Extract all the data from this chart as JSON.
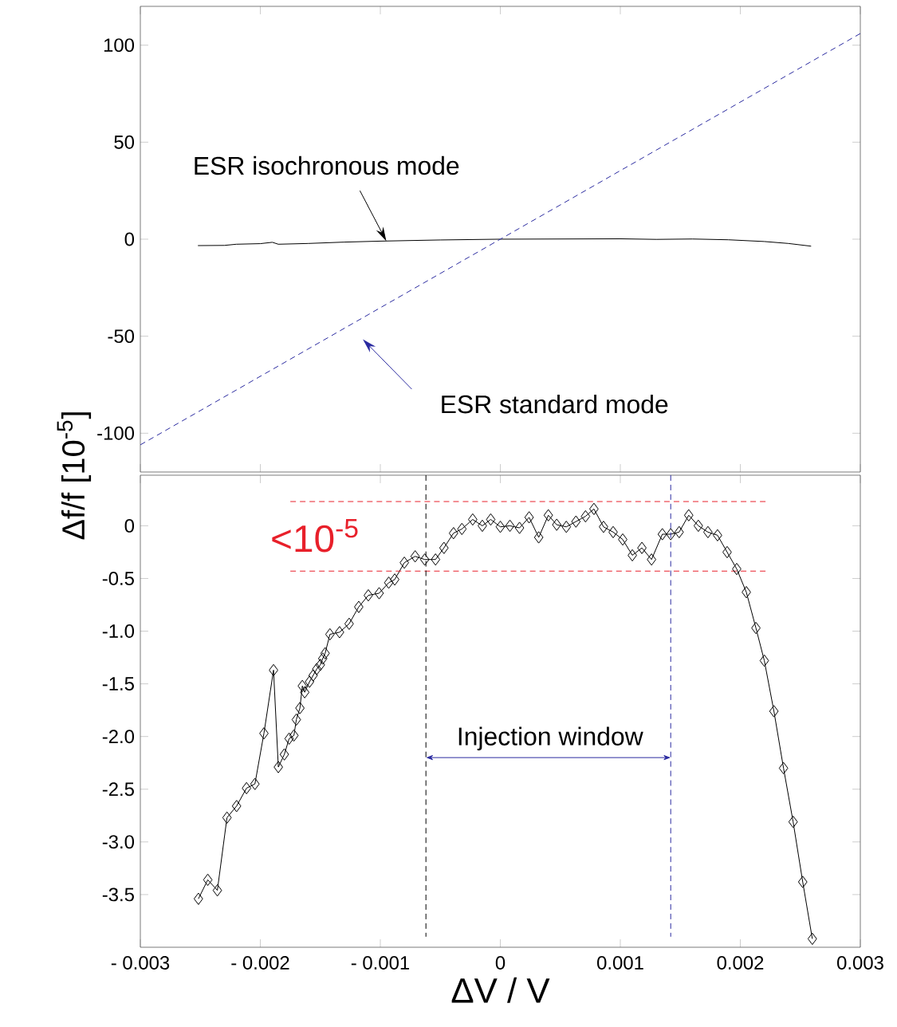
{
  "chart_data": [
    {
      "type": "line",
      "xlim": [
        -0.003,
        0.003
      ],
      "ylim": [
        -120,
        120
      ],
      "tick_labels": "y",
      "xticks": [
        {
          "value": -0.003,
          "label": null
        },
        {
          "value": -0.002,
          "label": null
        },
        {
          "value": -0.001,
          "label": null
        },
        {
          "value": 0,
          "label": null
        },
        {
          "value": 0.001,
          "label": null
        },
        {
          "value": 0.002,
          "label": null
        },
        {
          "value": 0.003,
          "label": null
        }
      ],
      "yticks": [
        -100,
        -50,
        0,
        50,
        100
      ],
      "series": [
        {
          "color": "#000000",
          "line_style": "solid",
          "marker": "none",
          "x": [
            -0.00252,
            -0.0023,
            -0.0022,
            -0.002,
            -0.0019,
            -0.00185,
            -0.0016,
            -0.0013,
            -0.001,
            -0.0005,
            0,
            0.0005,
            0.001,
            0.0013,
            0.0016,
            0.0019,
            0.0022,
            0.0024,
            0.00259
          ],
          "values": [
            -3.3,
            -3.2,
            -2.6,
            -2.3,
            -1.6,
            -2.6,
            -2.2,
            -1.5,
            -1.0,
            -0.4,
            0,
            0.1,
            0.2,
            -0.1,
            0.1,
            -0.3,
            -1.2,
            -2.2,
            -3.6
          ]
        },
        {
          "color": "#2a2aa0",
          "line_style": "dashed",
          "marker": "none",
          "x": [
            -0.003,
            0.003
          ],
          "values": [
            -106,
            106
          ]
        }
      ],
      "annotations": [
        {
          "text": "ESR isochronous mode",
          "x": -0.00095,
          "y": -1
        },
        "ESR standard mode"
      ]
    },
    {
      "type": "line",
      "xlabel": "ΔV / V",
      "ylabel": "Δf/f [10$^{-5}$]",
      "xlim": [
        -0.003,
        0.003
      ],
      "ylim": [
        -4.0,
        0.48
      ],
      "xticks": [
        {
          "value": -0.003,
          "label": "- 0.003"
        },
        {
          "value": -0.002,
          "label": "- 0.002"
        },
        {
          "value": -0.001,
          "label": "- 0.001"
        },
        0,
        0.001,
        0.002,
        0.003
      ],
      "yticks": [
        {
          "value": -3.5,
          "label": "-3.5"
        },
        {
          "value": -3.0,
          "label": "-3.0"
        },
        {
          "value": -2.5,
          "label": "-2.5"
        },
        {
          "value": -2.0,
          "label": "-2.0"
        },
        {
          "value": -1.5,
          "label": "-1.5"
        },
        {
          "value": -1.0,
          "label": "-1.0"
        },
        {
          "value": -0.5,
          "label": "-0.5"
        },
        0
      ],
      "series": [
        {
          "color": "#000000",
          "line_style": "solid",
          "marker": "diamond",
          "x": [
            -0.002516,
            -0.002438,
            -0.002358,
            -0.002278,
            -0.002198,
            -0.002115,
            -0.002045,
            -0.00197,
            -0.00189,
            -0.00185,
            -0.0018,
            -0.00176,
            -0.00172,
            -0.0017,
            -0.00167,
            -0.00165,
            -0.00163,
            -0.00159,
            -0.00156,
            -0.00153,
            -0.0015,
            -0.00148,
            -0.00146,
            -0.00142,
            -0.00134,
            -0.00126,
            -0.00118,
            -0.0011,
            -0.00101,
            -0.00093,
            -0.00088,
            -0.0008,
            -0.00071,
            -0.00063,
            -0.00054,
            -0.00047,
            -0.00039,
            -0.00032,
            -0.00023,
            -0.00015,
            -8e-05,
            0.0,
            8e-05,
            0.00016,
            0.00024,
            0.00032,
            0.0004,
            0.00047,
            0.00055,
            0.00063,
            0.00071,
            0.00078,
            0.00086,
            0.00094,
            0.00102,
            0.0011,
            0.00118,
            0.00126,
            0.00135,
            0.00142,
            0.00149,
            0.00157,
            0.00165,
            0.00173,
            0.00181,
            0.00189,
            0.00197,
            0.00205,
            0.00213,
            0.0022,
            0.00228,
            0.00236,
            0.00244,
            0.00252,
            0.0026
          ],
          "values": [
            -3.54,
            -3.36,
            -3.46,
            -2.77,
            -2.66,
            -2.49,
            -2.45,
            -1.97,
            -1.37,
            -2.29,
            -2.17,
            -2.02,
            -1.99,
            -1.84,
            -1.73,
            -1.52,
            -1.58,
            -1.48,
            -1.42,
            -1.36,
            -1.32,
            -1.26,
            -1.21,
            -1.03,
            -1.01,
            -0.93,
            -0.77,
            -0.66,
            -0.64,
            -0.54,
            -0.51,
            -0.35,
            -0.29,
            -0.32,
            -0.32,
            -0.21,
            -0.07,
            -0.03,
            0.06,
            0.0,
            0.06,
            -0.01,
            0.0,
            -0.02,
            0.08,
            -0.11,
            0.1,
            0.01,
            -0.01,
            0.04,
            0.09,
            0.16,
            -0.01,
            -0.06,
            -0.13,
            -0.28,
            -0.21,
            -0.32,
            -0.08,
            -0.08,
            -0.06,
            0.1,
            0.0,
            -0.06,
            -0.09,
            -0.25,
            -0.41,
            -0.63,
            -0.97,
            -1.28,
            -1.76,
            -2.3,
            -2.81,
            -3.38,
            -3.92
          ]
        },
        {
          "color": "#e8202a",
          "line_style": "dashed",
          "marker": "none",
          "x": [
            -0.00175,
            0.00221
          ],
          "values": [
            0.23,
            0.23
          ]
        },
        {
          "color": "#e8202a",
          "line_style": "dashed",
          "marker": "none",
          "x": [
            -0.00175,
            0.00221
          ],
          "values": [
            -0.43,
            -0.43
          ]
        }
      ],
      "ref_lines": [
        {
          "axis": "x",
          "value": -0.00062,
          "color": "#000000",
          "line_style": "dashed"
        },
        {
          "axis": "x",
          "value": 0.00142,
          "color": "#2a2aa0",
          "line_style": "dashed"
        }
      ],
      "annotations": [
        "<10$^{-5}$",
        "Injection window"
      ]
    }
  ]
}
